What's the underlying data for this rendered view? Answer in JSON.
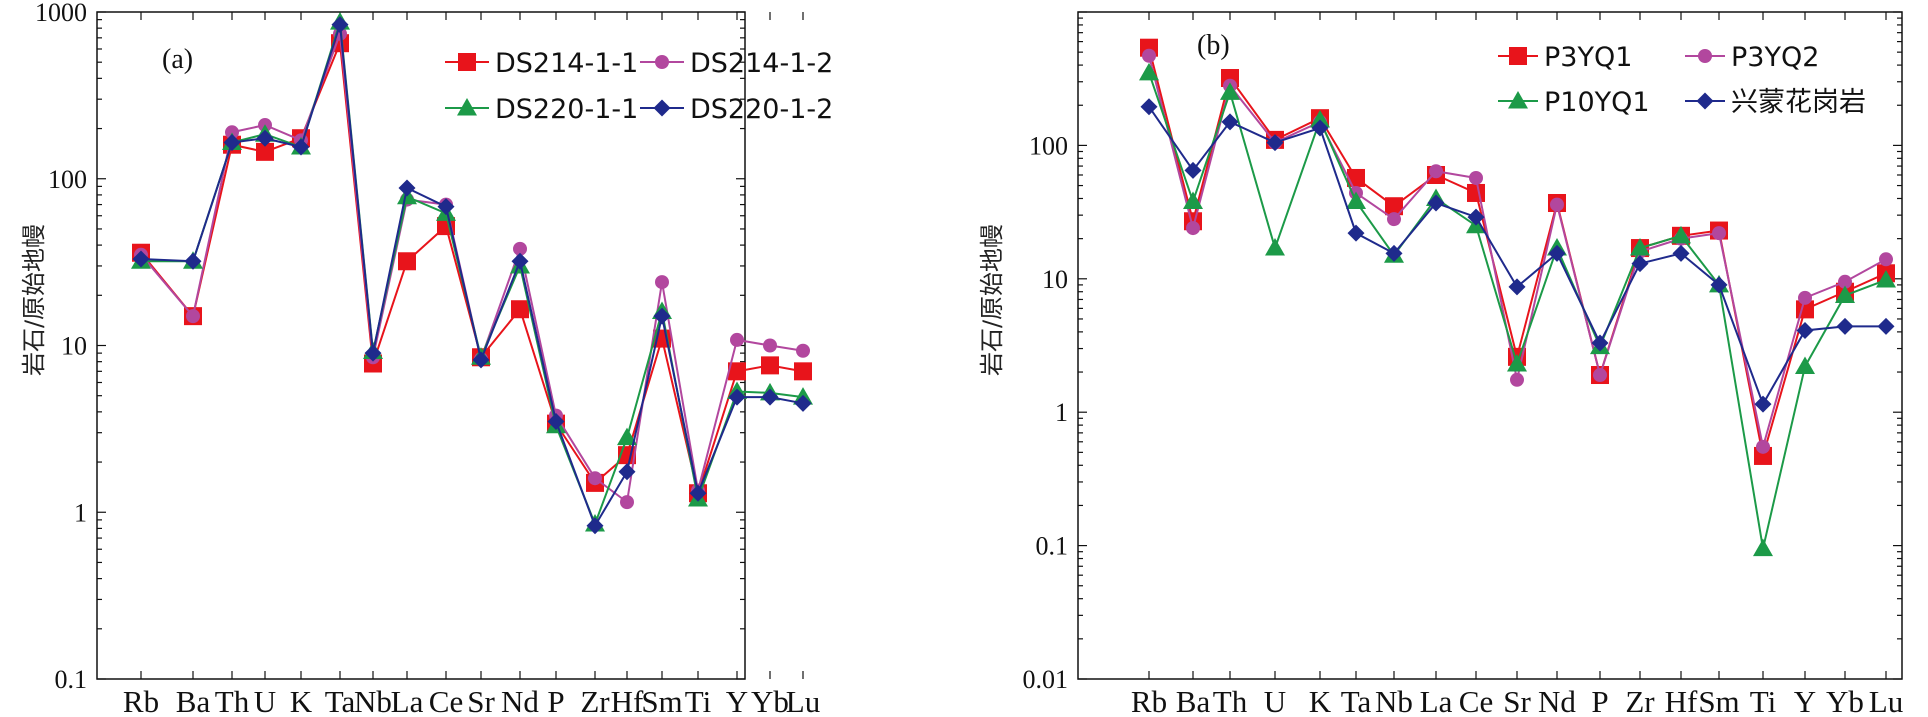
{
  "chart_data": [
    {
      "type": "line",
      "panel_label": "(a)",
      "ylabel": "岩石/原始地幔",
      "yscale": "log",
      "ylim": [
        0.1,
        1000
      ],
      "ytick_labels": [
        "0.1",
        "1",
        "10",
        "100",
        "1000"
      ],
      "ytick_values": [
        0.1,
        1,
        10,
        100,
        1000
      ],
      "categories": [
        "Rb",
        "Ba",
        "Th",
        "U",
        "K",
        "Ta",
        "Nb",
        "La",
        "Ce",
        "Sr",
        "Nd",
        "P",
        "Zr",
        "Hf",
        "Sm",
        "Ti",
        "Y",
        "Yb",
        "Lu"
      ],
      "legend_position": "top-right",
      "series": [
        {
          "name": "DS214-1-1",
          "color": "#e8141b",
          "marker": "square",
          "values": [
            36,
            15,
            160,
            145,
            175,
            650,
            7.8,
            32,
            52,
            8.5,
            16.5,
            3.4,
            1.5,
            2.2,
            11,
            1.3,
            7,
            7.6,
            7
          ]
        },
        {
          "name": "DS214-1-2",
          "color": "#b2479e",
          "marker": "circle",
          "values": [
            35,
            15,
            190,
            210,
            170,
            740,
            8.5,
            75,
            70,
            8.3,
            38,
            3.8,
            1.6,
            1.15,
            24,
            1.35,
            10.8,
            10,
            9.3
          ]
        },
        {
          "name": "DS220-1-1",
          "color": "#1c9a48",
          "marker": "triangle",
          "values": [
            32,
            32,
            165,
            185,
            155,
            870,
            9.2,
            78,
            62,
            8.5,
            30,
            3.3,
            0.85,
            2.8,
            16,
            1.2,
            5.3,
            5.2,
            4.9
          ]
        },
        {
          "name": "DS220-1-2",
          "color": "#1f2a8c",
          "marker": "diamond",
          "values": [
            33,
            32,
            165,
            175,
            155,
            840,
            9,
            88,
            68,
            8.2,
            32,
            3.5,
            0.83,
            1.75,
            15,
            1.3,
            4.9,
            4.9,
            4.5
          ]
        }
      ]
    },
    {
      "type": "line",
      "panel_label": "(b)",
      "ylabel": "岩石/原始地幔",
      "yscale": "log",
      "ylim": [
        0.01,
        1000
      ],
      "ytick_labels": [
        "0.01",
        "0.1",
        "1",
        "10",
        "100"
      ],
      "ytick_values": [
        0.01,
        0.1,
        1,
        10,
        100
      ],
      "categories": [
        "Rb",
        "Ba",
        "Th",
        "U",
        "K",
        "Ta",
        "Nb",
        "La",
        "Ce",
        "Sr",
        "Nd",
        "P",
        "Zr",
        "Hf",
        "Sm",
        "Ti",
        "Y",
        "Yb",
        "Lu"
      ],
      "legend_position": "top-right",
      "series": [
        {
          "name": "P3YQ1",
          "color": "#e8141b",
          "marker": "square",
          "values": [
            540,
            27,
            320,
            110,
            160,
            57,
            35,
            60,
            44,
            2.6,
            37,
            1.9,
            17,
            21,
            23,
            0.47,
            5.9,
            8,
            11
          ]
        },
        {
          "name": "P3YQ2",
          "color": "#b2479e",
          "marker": "circle",
          "values": [
            470,
            24,
            280,
            105,
            150,
            44,
            28,
            64,
            57,
            1.75,
            36,
            1.9,
            16,
            20,
            22,
            0.55,
            7.2,
            9.5,
            14
          ]
        },
        {
          "name": "P10YQ1",
          "color": "#1c9a48",
          "marker": "triangle",
          "values": [
            350,
            38,
            250,
            17,
            155,
            38,
            15,
            40,
            25,
            2.3,
            17,
            3.1,
            17,
            21,
            9,
            0.095,
            2.2,
            7.5,
            9.8
          ]
        },
        {
          "name": "兴蒙花岗岩",
          "color": "#1f2a8c",
          "marker": "diamond",
          "values": [
            195,
            65,
            150,
            105,
            135,
            22,
            15.5,
            37,
            29,
            8.7,
            15.5,
            3.3,
            13,
            15.5,
            9,
            1.15,
            4.1,
            4.4,
            4.4
          ]
        }
      ]
    }
  ]
}
